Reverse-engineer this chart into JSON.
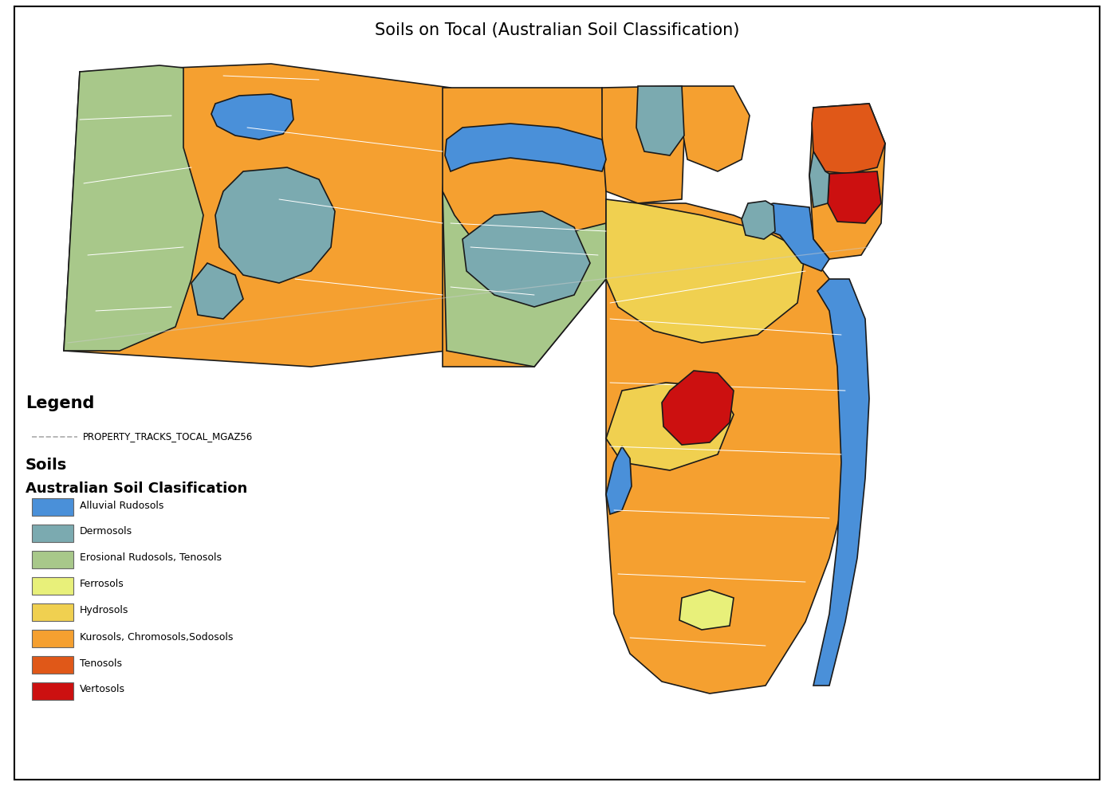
{
  "title": "Soils on Tocal (Australian Soil Classification)",
  "title_fontsize": 15,
  "background_color": "#ffffff",
  "legend_title": "Legend",
  "legend_subtitle1": "PROPERTY_TRACKS_TOCAL_MGAZ56",
  "legend_subtitle2": "Soils",
  "legend_subtitle3": "Australian Soil Clasification",
  "soil_types": [
    {
      "label": "Alluvial Rudosols",
      "color": "#4A90D9"
    },
    {
      "label": "Dermosols",
      "color": "#7BAAB0"
    },
    {
      "label": "Erosional Rudosols, Tenosols",
      "color": "#A8C88A"
    },
    {
      "label": "Ferrosols",
      "color": "#E8F07A"
    },
    {
      "label": "Hydrosols",
      "color": "#F0D050"
    },
    {
      "label": "Kurosols, Chromosols,Sodosols",
      "color": "#F5A030"
    },
    {
      "label": "Tenosols",
      "color": "#E05818"
    },
    {
      "label": "Vertosols",
      "color": "#CC1010"
    }
  ],
  "outline_color": "#1a1a1a",
  "internal_line_color": "#ffffff"
}
